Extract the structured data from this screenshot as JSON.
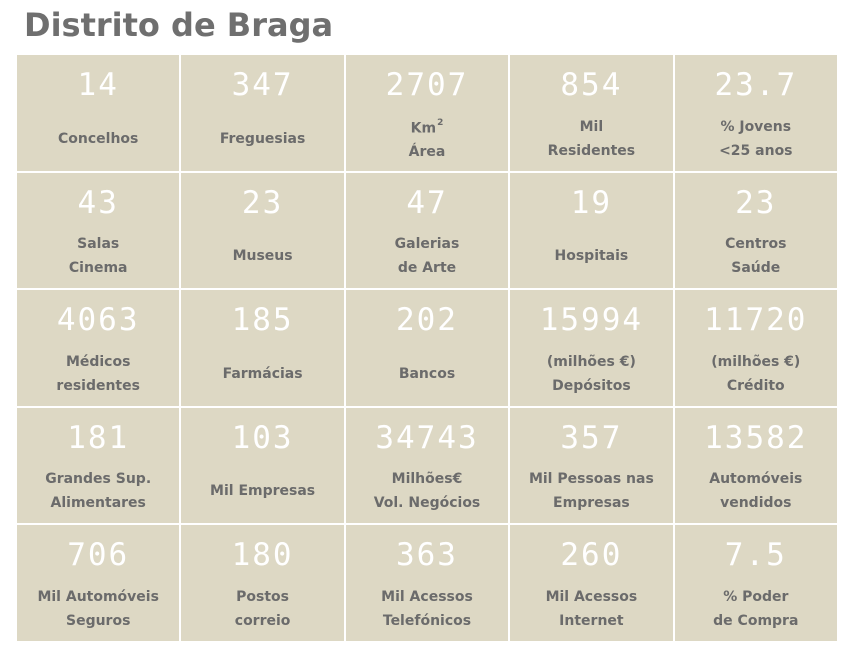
{
  "title": "Distrito de Braga",
  "cells": [
    {
      "value": "14",
      "line1": "Concelhos",
      "line2": ""
    },
    {
      "value": "347",
      "line1": "Freguesias",
      "line2": ""
    },
    {
      "value": "2707",
      "line1": "Km",
      "sup": "2",
      "line2": "Área"
    },
    {
      "value": "854",
      "line1": "Mil",
      "line2": "Residentes"
    },
    {
      "value": "23.7",
      "line1": "% Jovens",
      "line2": "<25 anos"
    },
    {
      "value": "43",
      "line1": "Salas",
      "line2": "Cinema"
    },
    {
      "value": "23",
      "line1": "Museus",
      "line2": ""
    },
    {
      "value": "47",
      "line1": "Galerias",
      "line2": "de Arte"
    },
    {
      "value": "19",
      "line1": "Hospitais",
      "line2": ""
    },
    {
      "value": "23",
      "line1": "Centros",
      "line2": "Saúde"
    },
    {
      "value": "4063",
      "line1": "Médicos",
      "line2": "residentes"
    },
    {
      "value": "185",
      "line1": "Farmácias",
      "line2": ""
    },
    {
      "value": "202",
      "line1": "Bancos",
      "line2": ""
    },
    {
      "value": "15994",
      "line1": "(milhões €)",
      "line2": "Depósitos"
    },
    {
      "value": "11720",
      "line1": "(milhões €)",
      "line2": "Crédito"
    },
    {
      "value": "181",
      "line1": "Grandes Sup.",
      "line2": "Alimentares"
    },
    {
      "value": "103",
      "line1": "Mil Empresas",
      "line2": ""
    },
    {
      "value": "34743",
      "line1": "Milhões€",
      "line2": "Vol. Negócios"
    },
    {
      "value": "357",
      "line1": "Mil Pessoas nas",
      "line2": "Empresas"
    },
    {
      "value": "13582",
      "line1": "Automóveis",
      "line2": "vendidos"
    },
    {
      "value": "706",
      "line1": "Mil Automóveis",
      "line2": "Seguros"
    },
    {
      "value": "180",
      "line1": "Postos",
      "line2": "correio"
    },
    {
      "value": "363",
      "line1": "Mil Acessos",
      "line2": "Telefónicos"
    },
    {
      "value": "260",
      "line1": "Mil Acessos",
      "line2": "Internet"
    },
    {
      "value": "7.5",
      "line1": "% Poder",
      "line2": "de Compra"
    }
  ]
}
